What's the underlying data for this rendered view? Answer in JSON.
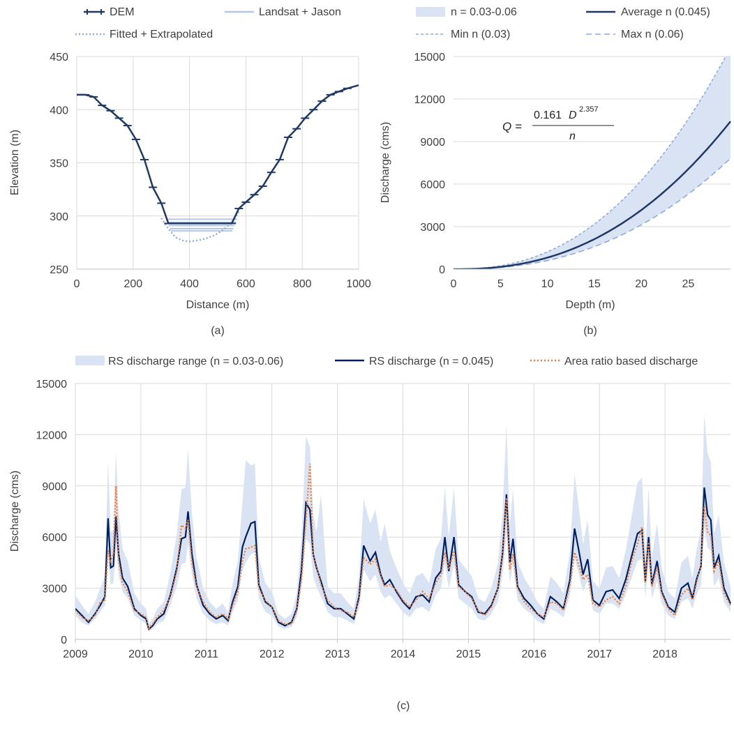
{
  "chart_data": [
    {
      "panel": "(a)",
      "type": "line",
      "xlabel": "Distance (m)",
      "ylabel": "Elevation (m)",
      "xlim": [
        0,
        1000
      ],
      "ylim": [
        250,
        450
      ],
      "xticks": [
        0,
        200,
        400,
        600,
        800,
        1000
      ],
      "yticks": [
        250,
        300,
        350,
        400,
        450
      ],
      "legend": {
        "placement": "top"
      },
      "series": [
        {
          "name": "DEM",
          "style": "solid-with-tick-markers",
          "color": "#1f3864",
          "x": [
            0,
            30,
            60,
            90,
            120,
            150,
            180,
            210,
            240,
            270,
            300,
            325,
            550,
            575,
            600,
            630,
            660,
            690,
            720,
            750,
            780,
            810,
            840,
            870,
            900,
            930,
            960,
            1000
          ],
          "y": [
            414,
            414,
            412,
            404,
            399,
            392,
            385,
            372,
            353,
            327,
            312,
            293,
            293,
            307,
            313,
            320,
            328,
            341,
            353,
            374,
            382,
            392,
            400,
            408,
            414,
            417,
            420,
            423
          ]
        },
        {
          "name": "Landsat + Jason",
          "style": "horizontal-levels",
          "color": "#b4c7e7",
          "levels": [
            {
              "y": 297,
              "x1": 318,
              "x2": 570
            },
            {
              "y": 294,
              "x1": 322,
              "x2": 565
            },
            {
              "y": 291,
              "x1": 326,
              "x2": 560
            },
            {
              "y": 288,
              "x1": 330,
              "x2": 556
            },
            {
              "y": 286,
              "x1": 334,
              "x2": 552
            }
          ]
        },
        {
          "name": "Fitted + Extrapolated",
          "style": "dotted",
          "color": "#8faadc",
          "x": [
            300,
            325,
            350,
            375,
            400,
            430,
            460,
            490,
            520,
            550,
            575
          ],
          "y": [
            298,
            288,
            280,
            277,
            276,
            277,
            279,
            282,
            287,
            294,
            304
          ]
        }
      ]
    },
    {
      "panel": "(b)",
      "type": "line",
      "xlabel": "Depth (m)",
      "ylabel": "Discharge (cms)",
      "xlim": [
        0,
        29.5
      ],
      "ylim": [
        0,
        15000
      ],
      "xticks": [
        0,
        5,
        10,
        15,
        20,
        25
      ],
      "yticks": [
        0,
        3000,
        6000,
        9000,
        12000,
        15000
      ],
      "legend": {
        "placement": "top"
      },
      "equation": {
        "lhs": "Q =",
        "numerator_coef": "0.161",
        "numerator_var": "D",
        "exponent": "2.357",
        "denominator": "n"
      },
      "formula": {
        "coef": 0.161,
        "exponent": 2.357
      },
      "series": [
        {
          "name": "n = 0.03-0.06",
          "style": "band",
          "color": "#dae3f3",
          "n_min": 0.03,
          "n_max": 0.06
        },
        {
          "name": "Average n (0.045)",
          "style": "solid",
          "color": "#1f3864",
          "n": 0.045
        },
        {
          "name": "Min n (0.03)",
          "style": "dashed",
          "color": "#8faadc",
          "n": 0.03
        },
        {
          "name": "Max n (0.06)",
          "style": "dashed",
          "color": "#8faadc",
          "n": 0.06
        }
      ]
    },
    {
      "panel": "(c)",
      "type": "line",
      "xlabel": "",
      "ylabel": "Discharge (cms)",
      "xlim": [
        2009,
        2019
      ],
      "ylim": [
        0,
        15000
      ],
      "xticks": [
        2009,
        2010,
        2011,
        2012,
        2013,
        2014,
        2015,
        2016,
        2017,
        2018
      ],
      "yticks": [
        0,
        3000,
        6000,
        9000,
        12000,
        15000
      ],
      "legend": {
        "placement": "top"
      },
      "series": [
        {
          "name": "RS discharge range (n = 0.03-0.06)",
          "style": "band",
          "color": "#dae3f3"
        },
        {
          "name": "RS discharge (n = 0.045)",
          "style": "solid",
          "color": "#002060"
        },
        {
          "name": "Area ratio based discharge",
          "style": "dotted",
          "color": "#ed7d31"
        }
      ],
      "x": [
        2009.0,
        2009.1,
        2009.2,
        2009.3,
        2009.38,
        2009.45,
        2009.5,
        2009.54,
        2009.58,
        2009.62,
        2009.66,
        2009.72,
        2009.8,
        2009.9,
        2010.0,
        2010.08,
        2010.12,
        2010.18,
        2010.25,
        2010.35,
        2010.45,
        2010.55,
        2010.62,
        2010.68,
        2010.72,
        2010.78,
        2010.85,
        2010.95,
        2011.05,
        2011.15,
        2011.25,
        2011.33,
        2011.4,
        2011.48,
        2011.55,
        2011.6,
        2011.68,
        2011.74,
        2011.8,
        2011.9,
        2012.0,
        2012.1,
        2012.2,
        2012.3,
        2012.38,
        2012.45,
        2012.52,
        2012.58,
        2012.63,
        2012.68,
        2012.75,
        2012.85,
        2012.95,
        2013.05,
        2013.15,
        2013.25,
        2013.33,
        2013.4,
        2013.5,
        2013.58,
        2013.66,
        2013.72,
        2013.8,
        2013.9,
        2014.0,
        2014.1,
        2014.2,
        2014.3,
        2014.4,
        2014.5,
        2014.58,
        2014.64,
        2014.7,
        2014.78,
        2014.85,
        2014.95,
        2015.05,
        2015.15,
        2015.25,
        2015.35,
        2015.45,
        2015.52,
        2015.58,
        2015.63,
        2015.68,
        2015.75,
        2015.85,
        2015.95,
        2016.05,
        2016.15,
        2016.25,
        2016.35,
        2016.45,
        2016.55,
        2016.62,
        2016.68,
        2016.75,
        2016.82,
        2016.9,
        2017.0,
        2017.1,
        2017.2,
        2017.3,
        2017.4,
        2017.5,
        2017.58,
        2017.65,
        2017.7,
        2017.75,
        2017.8,
        2017.88,
        2017.95,
        2018.05,
        2018.15,
        2018.25,
        2018.35,
        2018.42,
        2018.48,
        2018.55,
        2018.6,
        2018.65,
        2018.7,
        2018.75,
        2018.82,
        2018.9,
        2019.0
      ],
      "rs": [
        1800,
        1400,
        1000,
        1500,
        2000,
        2500,
        7100,
        4200,
        4300,
        7200,
        5000,
        3600,
        3100,
        1800,
        1400,
        1200,
        600,
        800,
        1200,
        1500,
        2600,
        4200,
        5900,
        6000,
        7500,
        5000,
        3200,
        2000,
        1500,
        1200,
        1400,
        1100,
        2200,
        3100,
        5400,
        6000,
        6800,
        6900,
        3200,
        2200,
        1900,
        1000,
        800,
        1000,
        1800,
        4000,
        8000,
        7600,
        5000,
        4200,
        3400,
        2100,
        1800,
        1800,
        1500,
        1200,
        2500,
        5500,
        4600,
        5100,
        3800,
        3200,
        3500,
        2800,
        2200,
        1800,
        2500,
        2600,
        2200,
        3600,
        4000,
        6000,
        4000,
        6000,
        3200,
        2800,
        2500,
        1600,
        1500,
        2000,
        3000,
        5000,
        8500,
        4500,
        5900,
        3100,
        2400,
        2000,
        1500,
        1200,
        2500,
        2200,
        1800,
        3500,
        6500,
        5300,
        3800,
        4700,
        2300,
        2000,
        2800,
        2900,
        2400,
        3500,
        5000,
        6200,
        6400,
        3400,
        6000,
        3200,
        4600,
        2800,
        1900,
        1600,
        3000,
        3300,
        2400,
        3500,
        4300,
        8900,
        7300,
        7000,
        4200,
        4900,
        3000,
        2100
      ],
      "lo": [
        1400,
        1000,
        800,
        1200,
        1600,
        2000,
        5000,
        3200,
        3300,
        5400,
        3800,
        2800,
        2400,
        1400,
        1100,
        900,
        450,
        600,
        900,
        1100,
        2000,
        3100,
        4400,
        4500,
        5600,
        3800,
        2400,
        1500,
        1100,
        900,
        1000,
        800,
        1600,
        2300,
        4000,
        4500,
        5000,
        5100,
        2400,
        1600,
        1400,
        750,
        600,
        750,
        1300,
        3000,
        5900,
        5600,
        3700,
        3100,
        2500,
        1600,
        1300,
        1300,
        1100,
        900,
        1800,
        4100,
        3400,
        3800,
        2800,
        2400,
        2600,
        2100,
        1600,
        1300,
        1800,
        1900,
        1600,
        2600,
        3000,
        4400,
        3000,
        4400,
        2400,
        2100,
        1800,
        1200,
        1100,
        1500,
        2200,
        3700,
        6300,
        3300,
        4400,
        2300,
        1800,
        1500,
        1100,
        900,
        1800,
        1600,
        1300,
        2600,
        4800,
        3900,
        2800,
        3500,
        1700,
        1500,
        2100,
        2100,
        1800,
        2600,
        3700,
        4600,
        4700,
        2500,
        4400,
        2400,
        3400,
        2100,
        1400,
        1200,
        2200,
        2400,
        1800,
        2600,
        3200,
        6600,
        5400,
        5200,
        3100,
        3600,
        2200,
        1600
      ],
      "hi": [
        2600,
        2000,
        1500,
        2200,
        3000,
        3700,
        10500,
        6300,
        6400,
        11000,
        7500,
        5300,
        4600,
        2700,
        2100,
        1800,
        900,
        1200,
        1800,
        2200,
        3900,
        6200,
        8800,
        8900,
        11200,
        7400,
        4800,
        3000,
        2200,
        1800,
        2100,
        1600,
        3300,
        4600,
        8000,
        10500,
        10200,
        10300,
        4800,
        3300,
        2800,
        1500,
        1200,
        1500,
        2700,
        5900,
        11900,
        11300,
        7400,
        6300,
        8500,
        3100,
        2700,
        2700,
        2200,
        1800,
        3700,
        8200,
        6800,
        7600,
        5700,
        6800,
        5200,
        4200,
        3300,
        2700,
        3700,
        3900,
        3300,
        5300,
        5900,
        8900,
        6000,
        8900,
        4700,
        4200,
        3700,
        2400,
        2200,
        3000,
        4500,
        7400,
        12600,
        6700,
        8800,
        4600,
        3600,
        3000,
        2200,
        1800,
        3700,
        3300,
        2700,
        5200,
        9700,
        7900,
        5600,
        7000,
        3400,
        3000,
        4200,
        4300,
        3600,
        5200,
        7400,
        9200,
        9500,
        5100,
        8900,
        4800,
        6800,
        4200,
        2800,
        2400,
        4500,
        4900,
        3600,
        5200,
        6400,
        13200,
        10900,
        10400,
        6200,
        7300,
        4500,
        3100
      ],
      "ar": [
        1700,
        1300,
        1100,
        1400,
        2200,
        2300,
        5200,
        4600,
        5000,
        9000,
        4600,
        3300,
        2800,
        1700,
        1500,
        1300,
        650,
        900,
        1300,
        1700,
        2500,
        4000,
        6700,
        6500,
        7000,
        4500,
        3100,
        2200,
        1600,
        1300,
        1500,
        1200,
        2000,
        2800,
        4600,
        5300,
        5400,
        5500,
        3000,
        2300,
        1900,
        1100,
        900,
        900,
        1700,
        3500,
        7000,
        10300,
        5000,
        4300,
        3200,
        2300,
        1900,
        1700,
        1600,
        1300,
        2300,
        4800,
        4400,
        4700,
        3700,
        3100,
        3200,
        2900,
        2300,
        1900,
        2300,
        2800,
        2400,
        3300,
        3800,
        5100,
        4100,
        5200,
        3100,
        2800,
        2400,
        1700,
        1400,
        1900,
        3000,
        5200,
        8300,
        4100,
        5000,
        3000,
        2200,
        1800,
        1500,
        1300,
        2200,
        2100,
        1700,
        3200,
        5100,
        4400,
        3500,
        3800,
        2100,
        1900,
        2300,
        2500,
        2100,
        3100,
        4700,
        5600,
        6600,
        3300,
        5700,
        3100,
        4200,
        2700,
        1800,
        1400,
        2600,
        3000,
        2300,
        3300,
        4400,
        7800,
        6300,
        6100,
        4000,
        4600,
        2700,
        2000
      ]
    }
  ],
  "labels": {
    "a": "(a)",
    "b": "(b)",
    "c": "(c)"
  },
  "colors": {
    "axis": "#bfbfbf",
    "grid": "#d9d9d9",
    "text": "#404040"
  }
}
